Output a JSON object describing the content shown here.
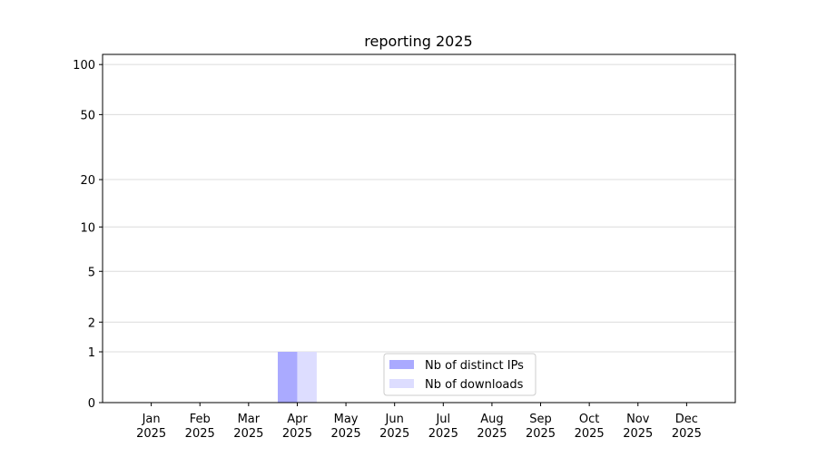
{
  "chart_data": {
    "type": "bar",
    "title": "reporting 2025",
    "categories": [
      [
        "Jan",
        "2025"
      ],
      [
        "Feb",
        "2025"
      ],
      [
        "Mar",
        "2025"
      ],
      [
        "Apr",
        "2025"
      ],
      [
        "May",
        "2025"
      ],
      [
        "Jun",
        "2025"
      ],
      [
        "Jul",
        "2025"
      ],
      [
        "Aug",
        "2025"
      ],
      [
        "Sep",
        "2025"
      ],
      [
        "Oct",
        "2025"
      ],
      [
        "Nov",
        "2025"
      ],
      [
        "Dec",
        "2025"
      ]
    ],
    "series": [
      {
        "name": "Nb of distinct IPs",
        "color": "#aaaaff",
        "values": [
          0,
          0,
          0,
          1,
          0,
          0,
          0,
          0,
          0,
          0,
          0,
          0
        ]
      },
      {
        "name": "Nb of downloads",
        "color": "#ddddff",
        "values": [
          0,
          0,
          0,
          1,
          0,
          0,
          0,
          0,
          0,
          0,
          0,
          0
        ]
      }
    ],
    "y_scale": "log1p",
    "ylim": [
      0,
      115
    ],
    "yticks": [
      0,
      1,
      2,
      5,
      10,
      20,
      50,
      100
    ],
    "grid": true,
    "legend": "lower center"
  }
}
